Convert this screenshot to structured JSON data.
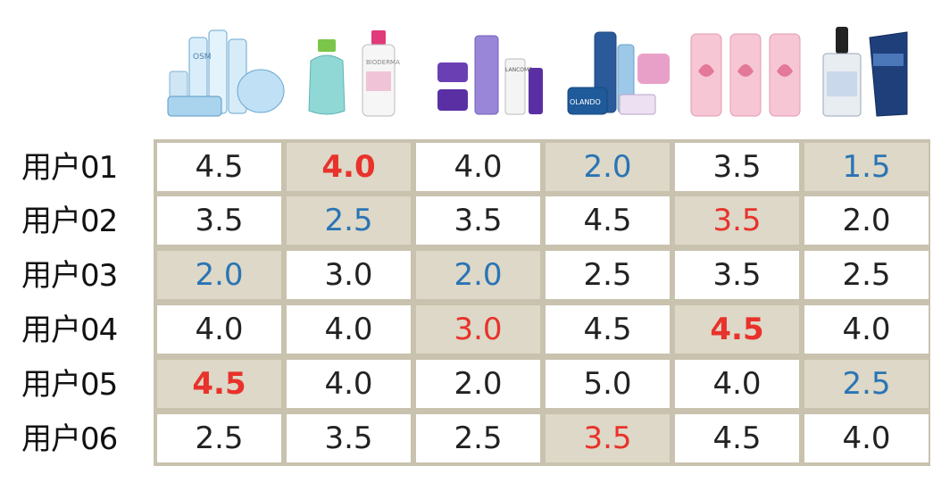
{
  "products": [
    {
      "icon": "skincare-set-blue-icon",
      "label": "OSM"
    },
    {
      "icon": "micellar-water-icon",
      "label": "BIODERMA"
    },
    {
      "icon": "skincare-set-purple-icon",
      "label": "LANCOME"
    },
    {
      "icon": "skincare-set-navy-icon",
      "label": "OLANDO"
    },
    {
      "icon": "pink-bottles-icon",
      "label": ""
    },
    {
      "icon": "serum-and-cream-icon",
      "label": ""
    }
  ],
  "users": [
    "用户01",
    "用户02",
    "用户03",
    "用户04",
    "用户05",
    "用户06"
  ],
  "ratings": [
    [
      {
        "v": "4.5",
        "c": "black",
        "b": false,
        "s": false
      },
      {
        "v": "4.0",
        "c": "red",
        "b": true,
        "s": true
      },
      {
        "v": "4.0",
        "c": "black",
        "b": false,
        "s": false
      },
      {
        "v": "2.0",
        "c": "blue",
        "b": false,
        "s": true
      },
      {
        "v": "3.5",
        "c": "black",
        "b": false,
        "s": false
      },
      {
        "v": "1.5",
        "c": "blue",
        "b": false,
        "s": true
      }
    ],
    [
      {
        "v": "3.5",
        "c": "black",
        "b": false,
        "s": false
      },
      {
        "v": "2.5",
        "c": "blue",
        "b": false,
        "s": true
      },
      {
        "v": "3.5",
        "c": "black",
        "b": false,
        "s": false
      },
      {
        "v": "4.5",
        "c": "black",
        "b": false,
        "s": false
      },
      {
        "v": "3.5",
        "c": "red",
        "b": false,
        "s": true
      },
      {
        "v": "2.0",
        "c": "black",
        "b": false,
        "s": false
      }
    ],
    [
      {
        "v": "2.0",
        "c": "blue",
        "b": false,
        "s": true
      },
      {
        "v": "3.0",
        "c": "black",
        "b": false,
        "s": false
      },
      {
        "v": "2.0",
        "c": "blue",
        "b": false,
        "s": true
      },
      {
        "v": "2.5",
        "c": "black",
        "b": false,
        "s": false
      },
      {
        "v": "3.5",
        "c": "black",
        "b": false,
        "s": false
      },
      {
        "v": "2.5",
        "c": "black",
        "b": false,
        "s": false
      }
    ],
    [
      {
        "v": "4.0",
        "c": "black",
        "b": false,
        "s": false
      },
      {
        "v": "4.0",
        "c": "black",
        "b": false,
        "s": false
      },
      {
        "v": "3.0",
        "c": "red",
        "b": false,
        "s": true
      },
      {
        "v": "4.5",
        "c": "black",
        "b": false,
        "s": false
      },
      {
        "v": "4.5",
        "c": "red",
        "b": true,
        "s": true
      },
      {
        "v": "4.0",
        "c": "black",
        "b": false,
        "s": false
      }
    ],
    [
      {
        "v": "4.5",
        "c": "red",
        "b": true,
        "s": true
      },
      {
        "v": "4.0",
        "c": "black",
        "b": false,
        "s": false
      },
      {
        "v": "2.0",
        "c": "black",
        "b": false,
        "s": false
      },
      {
        "v": "5.0",
        "c": "black",
        "b": false,
        "s": false
      },
      {
        "v": "4.0",
        "c": "black",
        "b": false,
        "s": false
      },
      {
        "v": "2.5",
        "c": "blue",
        "b": false,
        "s": true
      }
    ],
    [
      {
        "v": "2.5",
        "c": "black",
        "b": false,
        "s": false
      },
      {
        "v": "3.5",
        "c": "black",
        "b": false,
        "s": false
      },
      {
        "v": "2.5",
        "c": "black",
        "b": false,
        "s": false
      },
      {
        "v": "3.5",
        "c": "red",
        "b": false,
        "s": true
      },
      {
        "v": "4.5",
        "c": "black",
        "b": false,
        "s": false
      },
      {
        "v": "4.0",
        "c": "black",
        "b": false,
        "s": false
      }
    ]
  ],
  "colors": {
    "black": "#222222",
    "blue": "#2a74b5",
    "red": "#e8322b",
    "shade": "#ddd8c7",
    "border": "#c8c2ae"
  }
}
